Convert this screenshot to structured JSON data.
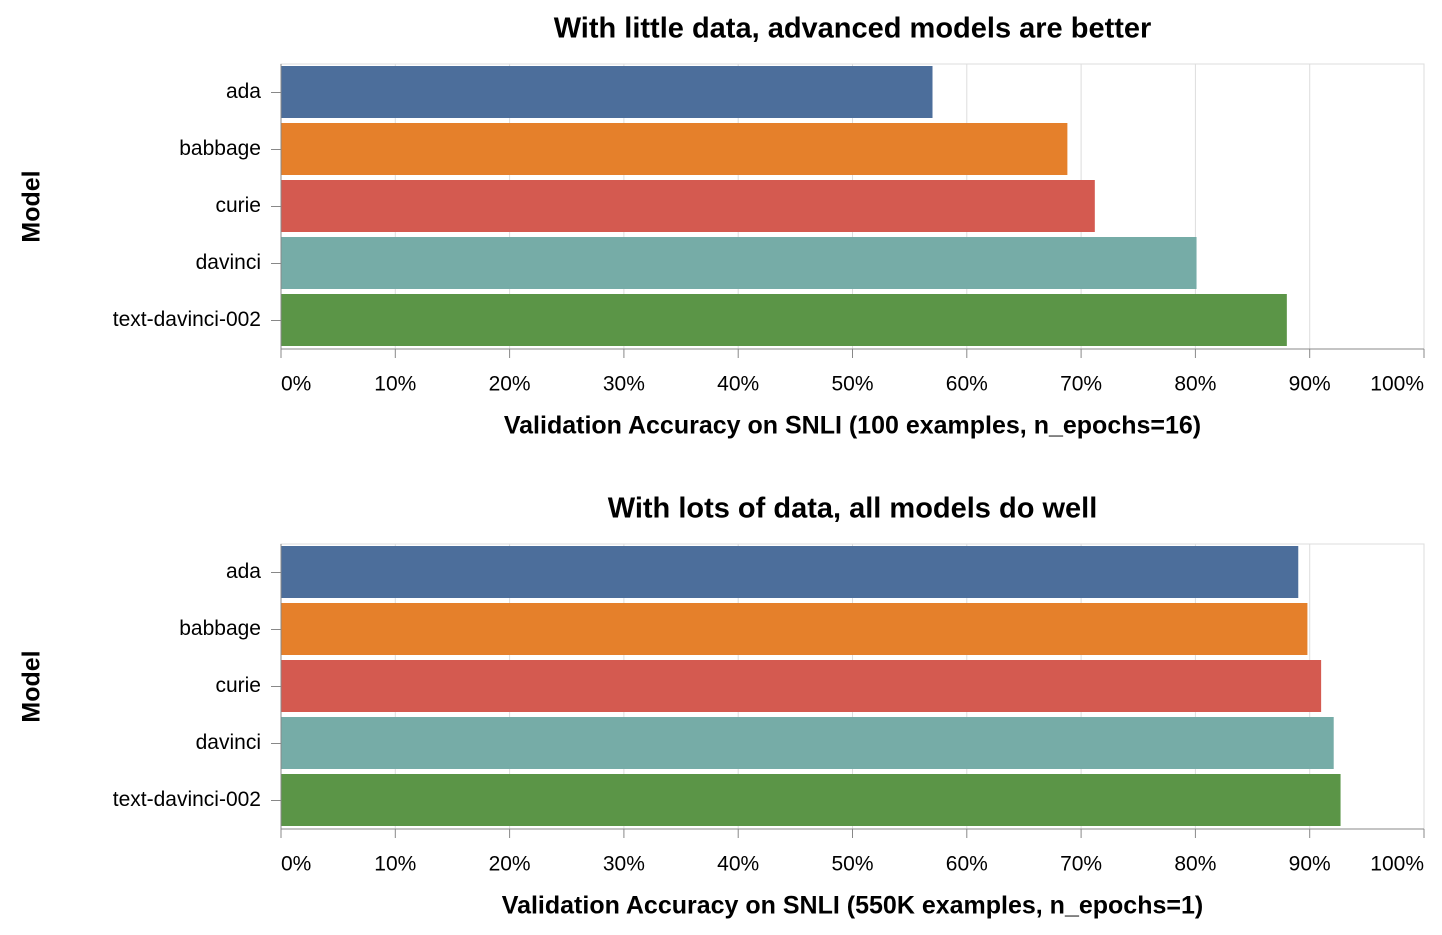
{
  "chart_data": [
    {
      "type": "hbar",
      "title": "With little data, advanced models are better",
      "x_label": "Validation Accuracy on SNLI (100 examples, n_epochs=16)",
      "y_label": "Model",
      "categories": [
        "ada",
        "babbage",
        "curie",
        "davinci",
        "text-davinci-002"
      ],
      "values": [
        57.0,
        68.8,
        71.2,
        80.1,
        88.0
      ],
      "colors": [
        "#4c6e9b",
        "#e5802b",
        "#d45a50",
        "#76aca7",
        "#5b9547"
      ],
      "xlim": [
        0,
        100
      ],
      "xticks": [
        {
          "value": 0,
          "label": "0%"
        },
        {
          "value": 10,
          "label": "10%"
        },
        {
          "value": 20,
          "label": "20%"
        },
        {
          "value": 30,
          "label": "30%"
        },
        {
          "value": 40,
          "label": "40%"
        },
        {
          "value": 50,
          "label": "50%"
        },
        {
          "value": 60,
          "label": "60%"
        },
        {
          "value": 70,
          "label": "70%"
        },
        {
          "value": 80,
          "label": "80%"
        },
        {
          "value": 90,
          "label": "90%"
        },
        {
          "value": 100,
          "label": "100%"
        }
      ],
      "grid": true
    },
    {
      "type": "hbar",
      "title": "With lots of data, all models do well",
      "x_label": "Validation Accuracy on SNLI (550K examples, n_epochs=1)",
      "y_label": "Model",
      "categories": [
        "ada",
        "babbage",
        "curie",
        "davinci",
        "text-davinci-002"
      ],
      "values": [
        89.0,
        89.8,
        91.0,
        92.1,
        92.7
      ],
      "colors": [
        "#4c6e9b",
        "#e5802b",
        "#d45a50",
        "#76aca7",
        "#5b9547"
      ],
      "xlim": [
        0,
        100
      ],
      "xticks": [
        {
          "value": 0,
          "label": "0%"
        },
        {
          "value": 10,
          "label": "10%"
        },
        {
          "value": 20,
          "label": "20%"
        },
        {
          "value": 30,
          "label": "30%"
        },
        {
          "value": 40,
          "label": "40%"
        },
        {
          "value": 50,
          "label": "50%"
        },
        {
          "value": 60,
          "label": "60%"
        },
        {
          "value": 70,
          "label": "70%"
        },
        {
          "value": 80,
          "label": "80%"
        },
        {
          "value": 90,
          "label": "90%"
        },
        {
          "value": 100,
          "label": "100%"
        }
      ],
      "grid": true
    }
  ]
}
